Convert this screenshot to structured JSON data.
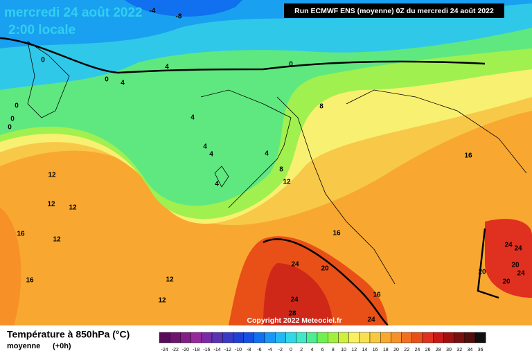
{
  "header": {
    "date": "mercredi 24 août 2022",
    "time": "2:00 locale",
    "run": "Run ECMWF ENS (moyenne) 0Z du mercredi 24 août 2022"
  },
  "map": {
    "labels": [
      "-4",
      "-8",
      "0",
      "0",
      "4",
      "4",
      "0",
      "0",
      "0",
      "0",
      "8",
      "4",
      "4",
      "4",
      "4",
      "4",
      "8",
      "12",
      "12",
      "12",
      "12",
      "12",
      "16",
      "16",
      "16",
      "16",
      "24",
      "20",
      "12",
      "12",
      "24",
      "28",
      "16",
      "24",
      "24",
      "24",
      "20",
      "24",
      "20",
      "20"
    ],
    "copyright": "Copyright 2022 Meteociel.fr"
  },
  "legend": {
    "title": "Température à 850hPa (°C)",
    "subtitle": "moyenne",
    "lead": "(+0h)",
    "ticks": [
      -24,
      -22,
      -20,
      -18,
      -16,
      -14,
      -12,
      -10,
      -8,
      -6,
      -4,
      -2,
      0,
      2,
      4,
      6,
      8,
      10,
      12,
      14,
      16,
      18,
      20,
      22,
      24,
      26,
      28,
      30,
      32,
      34,
      36
    ],
    "colors": [
      "#5a0a5a",
      "#6e1470",
      "#821e86",
      "#96289c",
      "#7a2aa6",
      "#5a32b4",
      "#3a3ac4",
      "#2040d4",
      "#1450e4",
      "#1070f0",
      "#1a96f4",
      "#22b8f4",
      "#30d8e8",
      "#40e8c8",
      "#50ec90",
      "#70f050",
      "#a0f040",
      "#d0f040",
      "#f8f060",
      "#f8e050",
      "#f8c840",
      "#f8a830",
      "#f89028",
      "#f07020",
      "#e85018",
      "#e03020",
      "#c81818",
      "#a01010",
      "#781010",
      "#501010",
      "#101010"
    ]
  }
}
